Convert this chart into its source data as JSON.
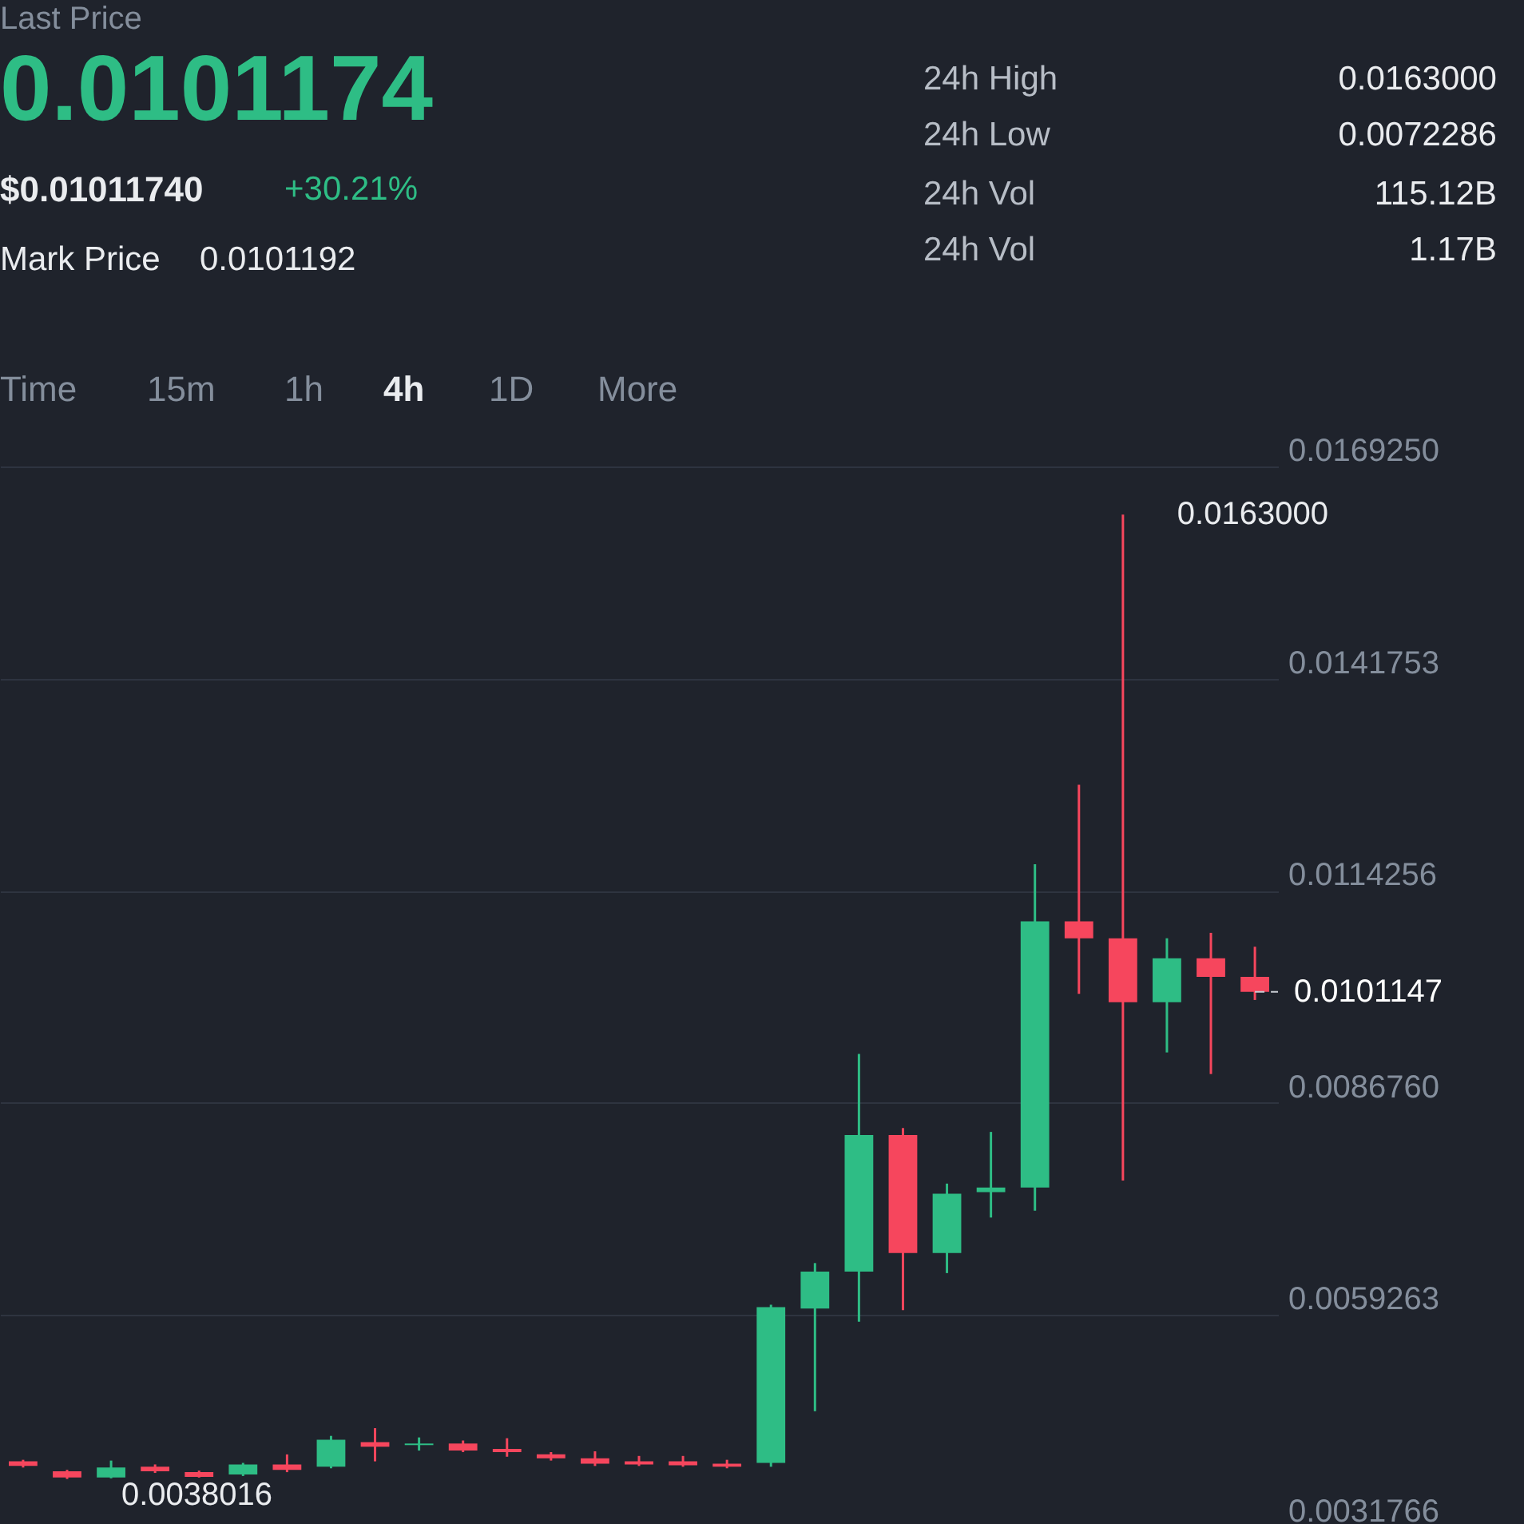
{
  "chart_data": {
    "type": "candlestick",
    "annotations": [
      "Last Price",
      "0.0101174",
      "$0.01011740",
      "+30.21%",
      "Mark Price",
      "0.0101192",
      "24h High",
      "0.0163000",
      "24h Low",
      "0.0072286",
      "24h Vol",
      "115.12B",
      "24h Vol",
      "1.17B",
      "Time",
      "15m",
      "1h",
      "4h",
      "1D",
      "More",
      "0.0163000",
      "0.0038016"
    ],
    "categories": [
      null,
      null,
      null,
      null,
      null,
      null,
      null,
      null,
      null,
      null,
      null,
      null,
      null,
      null,
      null,
      null,
      null,
      null,
      null,
      null,
      null,
      null,
      null,
      null,
      null,
      null,
      null,
      null,
      null
    ],
    "ohlc": [
      [
        0.00403,
        0.00405,
        0.00395,
        0.00397
      ],
      [
        0.0039,
        0.00392,
        0.0038016,
        0.00382
      ],
      [
        0.00382,
        0.00404,
        0.00381,
        0.00395
      ],
      [
        0.00396,
        0.00399,
        0.00388,
        0.0039
      ],
      [
        0.00389,
        0.00391,
        0.00382,
        0.00383
      ],
      [
        0.00386,
        0.00401,
        0.00384,
        0.00399
      ],
      [
        0.00399,
        0.00412,
        0.00389,
        0.00392
      ],
      [
        0.00396,
        0.00436,
        0.00394,
        0.00431
      ],
      [
        0.00428,
        0.00446,
        0.00403,
        0.00422
      ],
      [
        0.00424,
        0.00434,
        0.00417,
        0.00426
      ],
      [
        0.00426,
        0.0043,
        0.00415,
        0.00417
      ],
      [
        0.00419,
        0.00433,
        0.00409,
        0.00415
      ],
      [
        0.00412,
        0.00415,
        0.00404,
        0.00407
      ],
      [
        0.00407,
        0.00416,
        0.00397,
        0.004
      ],
      [
        0.00403,
        0.0041,
        0.00397,
        0.00399
      ],
      [
        0.00403,
        0.0041,
        0.00396,
        0.00398
      ],
      [
        0.004,
        0.00405,
        0.00394,
        0.00396
      ],
      [
        0.00401,
        0.00606,
        0.00396,
        0.00603
      ],
      [
        0.00601,
        0.0066,
        0.00468,
        0.00649
      ],
      [
        0.00649,
        0.00931,
        0.00584,
        0.00826
      ],
      [
        0.00826,
        0.00835,
        0.00599,
        0.00673
      ],
      [
        0.00673,
        0.00763,
        0.00647,
        0.0075
      ],
      [
        0.00752,
        0.0083,
        0.00719,
        0.00758
      ],
      [
        0.00758,
        0.01177,
        0.00728,
        0.01103
      ],
      [
        0.01103,
        0.0128,
        0.01009,
        0.01081
      ],
      [
        0.01081,
        0.0163,
        0.00767,
        0.00998
      ],
      [
        0.00998,
        0.01081,
        0.00933,
        0.01055
      ],
      [
        0.01055,
        0.01088,
        0.00905,
        0.01031
      ],
      [
        0.01031,
        0.0107,
        0.01001,
        0.0101147
      ]
    ],
    "colors": [
      "#f6465d",
      "#f6465d",
      "#2ebd85",
      "#f6465d",
      "#f6465d",
      "#2ebd85",
      "#f6465d",
      "#2ebd85",
      "#f6465d",
      "#2ebd85",
      "#f6465d",
      "#f6465d",
      "#f6465d",
      "#f6465d",
      "#f6465d",
      "#f6465d",
      "#f6465d",
      "#2ebd85",
      "#2ebd85",
      "#2ebd85",
      "#f6465d",
      "#2ebd85",
      "#2ebd85",
      "#2ebd85",
      "#f6465d",
      "#f6465d",
      "#2ebd85",
      "#f6465d",
      "#f6465d"
    ],
    "ylim": [
      0.0031766,
      0.016925
    ],
    "yticks": [
      {
        "value": 0.0031766,
        "label": "0.0031766"
      },
      {
        "value": 0.0059263,
        "label": "0.0059263"
      },
      {
        "value": 0.008676,
        "label": "0.0086760"
      },
      {
        "value": 0.0114256,
        "label": "0.0114256"
      },
      {
        "value": 0.0141753,
        "label": "0.0141753"
      },
      {
        "value": 0.016925,
        "label": "0.0169250"
      }
    ],
    "grid": "y",
    "tick_labels": "y",
    "ref_lines": [
      {
        "axis": "y",
        "value": 0.0101147,
        "label": "0.0101147",
        "line_style": "dashed",
        "color": "#c8ccd2"
      }
    ]
  }
}
